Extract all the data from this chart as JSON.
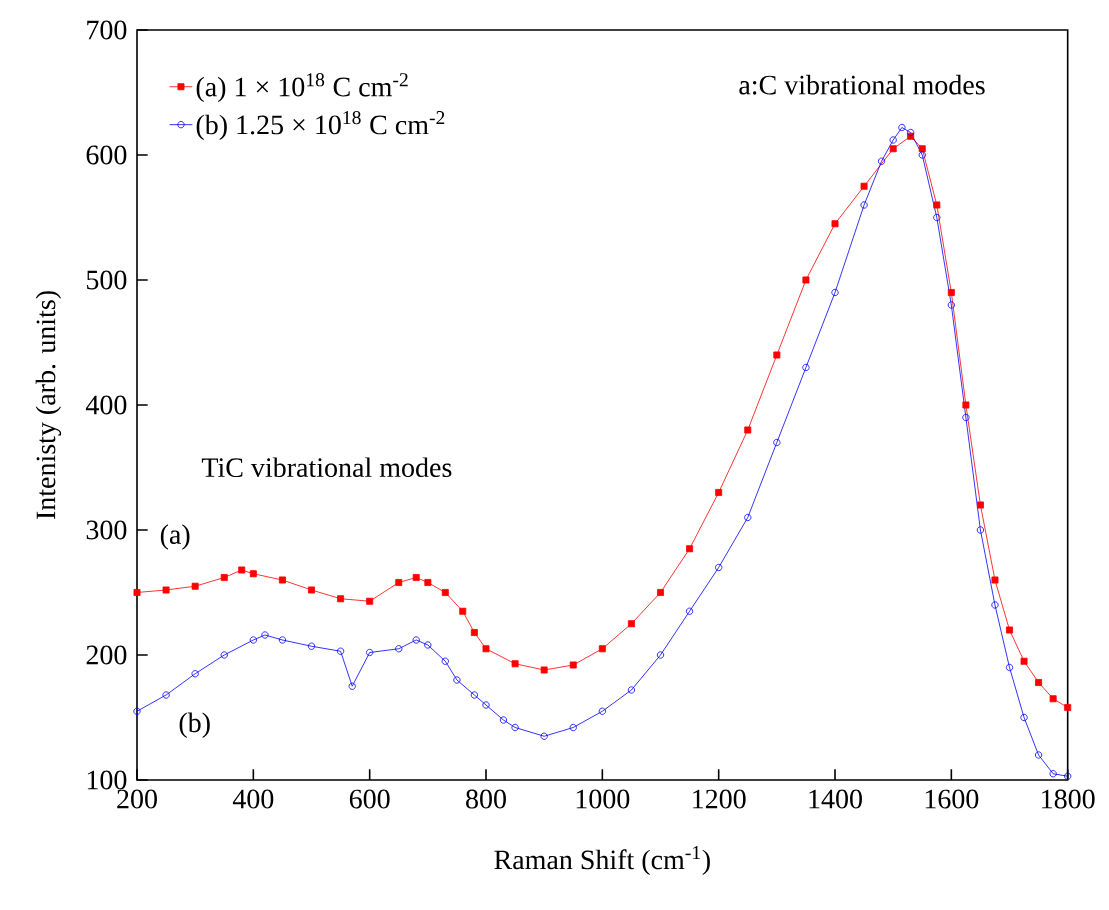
{
  "chart_data": {
    "type": "line",
    "xlabel": "Raman Shift (cm$^{-1}$)",
    "ylabel": "Intenisty (arb. units)",
    "xlim": [
      200,
      1800
    ],
    "ylim": [
      100,
      700
    ],
    "xticks": [
      200,
      400,
      600,
      800,
      1000,
      1200,
      1400,
      1600,
      1800
    ],
    "yticks": [
      100,
      200,
      300,
      400,
      500,
      600,
      700
    ],
    "grid": false,
    "legend": "top left",
    "series": [
      {
        "name": "(a) 1 × 10$^{18}$ C cm$^{-2}$",
        "color": "#ff0000",
        "marker": "square",
        "x": [
          200,
          250,
          300,
          350,
          380,
          400,
          450,
          500,
          550,
          600,
          650,
          680,
          700,
          730,
          760,
          780,
          800,
          850,
          900,
          950,
          1000,
          1050,
          1100,
          1150,
          1200,
          1250,
          1300,
          1350,
          1400,
          1450,
          1500,
          1530,
          1550,
          1575,
          1600,
          1625,
          1650,
          1675,
          1700,
          1725,
          1750,
          1775,
          1800
        ],
        "values": [
          250,
          252,
          255,
          262,
          268,
          265,
          260,
          252,
          245,
          243,
          258,
          262,
          258,
          250,
          235,
          218,
          205,
          193,
          188,
          192,
          205,
          225,
          250,
          285,
          330,
          380,
          440,
          500,
          545,
          575,
          605,
          615,
          605,
          560,
          490,
          400,
          320,
          260,
          220,
          195,
          178,
          165,
          158
        ]
      },
      {
        "name": "(b) 1.25 × 10$^{18}$ C cm$^{-2}$",
        "color": "#0000ff",
        "marker": "circle",
        "x": [
          200,
          250,
          300,
          350,
          400,
          420,
          450,
          500,
          550,
          570,
          600,
          650,
          680,
          700,
          730,
          750,
          780,
          800,
          830,
          850,
          900,
          950,
          1000,
          1050,
          1100,
          1150,
          1200,
          1250,
          1300,
          1350,
          1400,
          1450,
          1480,
          1500,
          1515,
          1530,
          1550,
          1575,
          1600,
          1625,
          1650,
          1675,
          1700,
          1725,
          1750,
          1775,
          1800
        ],
        "values": [
          155,
          168,
          185,
          200,
          212,
          216,
          212,
          207,
          203,
          175,
          202,
          205,
          212,
          208,
          195,
          180,
          168,
          160,
          148,
          142,
          135,
          142,
          155,
          172,
          200,
          235,
          270,
          310,
          370,
          430,
          490,
          560,
          595,
          612,
          622,
          618,
          600,
          550,
          480,
          390,
          300,
          240,
          190,
          150,
          120,
          105,
          103
        ]
      }
    ],
    "annotations": [
      "a:C vibrational modes",
      "TiC vibrational modes",
      "(a)",
      "(b)"
    ]
  }
}
